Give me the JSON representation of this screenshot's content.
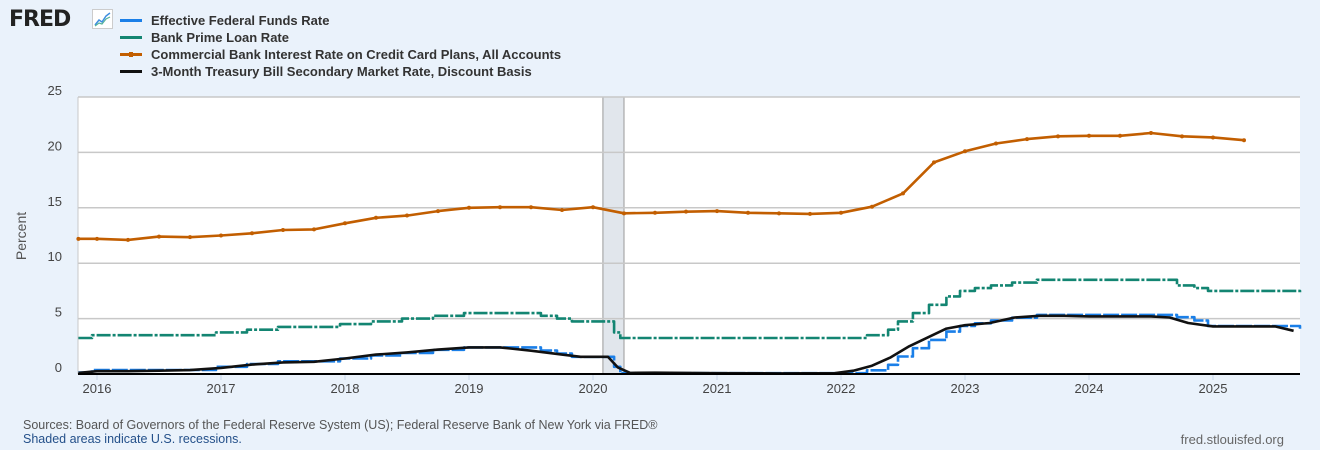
{
  "logo": {
    "text": "FRED",
    "icon": "line-chart-icon"
  },
  "legend": [
    {
      "label": "Effective Federal Funds Rate",
      "color": "#1a7fe8"
    },
    {
      "label": "Bank Prime Loan Rate",
      "color": "#138572"
    },
    {
      "label": "Commercial Bank Interest Rate on Credit Card Plans, All Accounts",
      "color": "#c25e00"
    },
    {
      "label": "3-Month Treasury Bill Secondary Market Rate, Discount Basis",
      "color": "#111111"
    }
  ],
  "footer": {
    "sources": "Sources: Board of Governors of the Federal Reserve System (US); Federal Reserve Bank of New York via FRED®",
    "shading_note": "Shaded areas indicate U.S. recessions.",
    "site": "fred.stlouisfed.org"
  },
  "chart_data": {
    "type": "line",
    "ylabel": "Percent",
    "ylim": [
      0,
      25
    ],
    "yticks": [
      0,
      5,
      10,
      15,
      20,
      25
    ],
    "xlim": [
      2015.85,
      2025.7
    ],
    "xticks": [
      "2016",
      "2017",
      "2018",
      "2019",
      "2020",
      "2021",
      "2022",
      "2023",
      "2024",
      "2025"
    ],
    "grid": true,
    "recessions": [
      [
        2020.08,
        2020.25
      ]
    ],
    "series": [
      {
        "name": "Effective Federal Funds Rate",
        "color": "#1a7fe8",
        "step": true,
        "x": [
          2015.85,
          2015.96,
          2016.96,
          2017.21,
          2017.46,
          2017.96,
          2018.21,
          2018.46,
          2018.71,
          2018.96,
          2019.58,
          2019.71,
          2019.83,
          2020.17,
          2020.22,
          2022.21,
          2022.38,
          2022.46,
          2022.58,
          2022.71,
          2022.85,
          2022.96,
          2023.08,
          2023.21,
          2023.38,
          2023.58,
          2024.71,
          2024.85,
          2024.96,
          2025.71
        ],
        "y": [
          0.13,
          0.36,
          0.65,
          0.9,
          1.15,
          1.4,
          1.68,
          1.9,
          2.18,
          2.4,
          2.12,
          1.85,
          1.55,
          0.65,
          0.07,
          0.33,
          0.83,
          1.58,
          2.33,
          3.08,
          3.83,
          4.33,
          4.58,
          4.83,
          5.08,
          5.33,
          5.13,
          4.83,
          4.33,
          4.08
        ]
      },
      {
        "name": "Bank Prime Loan Rate",
        "color": "#138572",
        "step": true,
        "x": [
          2015.85,
          2015.96,
          2016.96,
          2017.21,
          2017.46,
          2017.96,
          2018.21,
          2018.46,
          2018.71,
          2018.96,
          2019.58,
          2019.71,
          2019.83,
          2020.17,
          2020.22,
          2022.21,
          2022.38,
          2022.46,
          2022.58,
          2022.71,
          2022.85,
          2022.96,
          2023.08,
          2023.21,
          2023.38,
          2023.58,
          2024.71,
          2024.85,
          2024.96,
          2025.71
        ],
        "y": [
          3.25,
          3.5,
          3.75,
          4.0,
          4.25,
          4.5,
          4.75,
          5.0,
          5.25,
          5.5,
          5.25,
          5.0,
          4.75,
          3.75,
          3.25,
          3.5,
          4.0,
          4.75,
          5.5,
          6.25,
          7.0,
          7.5,
          7.75,
          8.0,
          8.25,
          8.5,
          8.0,
          7.75,
          7.5,
          7.25
        ]
      },
      {
        "name": "Commercial Bank Interest Rate on Credit Card Plans, All Accounts",
        "color": "#c25e00",
        "markers": true,
        "x": [
          2015.85,
          2016.0,
          2016.25,
          2016.5,
          2016.75,
          2017.0,
          2017.25,
          2017.5,
          2017.75,
          2018.0,
          2018.25,
          2018.5,
          2018.75,
          2019.0,
          2019.25,
          2019.5,
          2019.75,
          2020.0,
          2020.25,
          2020.5,
          2020.75,
          2021.0,
          2021.25,
          2021.5,
          2021.75,
          2022.0,
          2022.25,
          2022.5,
          2022.75,
          2023.0,
          2023.25,
          2023.5,
          2023.75,
          2024.0,
          2024.25,
          2024.5,
          2024.75,
          2025.0,
          2025.25
        ],
        "y": [
          12.2,
          12.2,
          12.1,
          12.4,
          12.35,
          12.5,
          12.7,
          13.0,
          13.05,
          13.6,
          14.1,
          14.3,
          14.7,
          15.0,
          15.05,
          15.05,
          14.8,
          15.05,
          14.5,
          14.55,
          14.65,
          14.7,
          14.55,
          14.5,
          14.45,
          14.55,
          15.1,
          16.3,
          19.1,
          20.1,
          20.8,
          21.2,
          21.45,
          21.5,
          21.5,
          21.75,
          21.45,
          21.35,
          21.1
        ]
      },
      {
        "name": "3-Month Treasury Bill Secondary Market Rate, Discount Basis",
        "color": "#111111",
        "x": [
          2015.85,
          2016.0,
          2016.25,
          2016.5,
          2016.75,
          2017.0,
          2017.25,
          2017.5,
          2017.75,
          2018.0,
          2018.25,
          2018.5,
          2018.75,
          2019.0,
          2019.25,
          2019.5,
          2019.75,
          2019.9,
          2020.0,
          2020.12,
          2020.2,
          2020.3,
          2020.5,
          2021.0,
          2021.5,
          2021.95,
          2022.1,
          2022.25,
          2022.4,
          2022.55,
          2022.7,
          2022.85,
          2023.0,
          2023.2,
          2023.4,
          2023.6,
          2023.8,
          2024.0,
          2024.25,
          2024.5,
          2024.65,
          2024.8,
          2025.0,
          2025.25,
          2025.5,
          2025.65
        ],
        "y": [
          0.1,
          0.25,
          0.25,
          0.3,
          0.35,
          0.55,
          0.85,
          1.05,
          1.1,
          1.4,
          1.75,
          1.95,
          2.2,
          2.4,
          2.4,
          2.1,
          1.75,
          1.55,
          1.55,
          1.55,
          0.6,
          0.1,
          0.12,
          0.07,
          0.05,
          0.07,
          0.3,
          0.75,
          1.5,
          2.5,
          3.3,
          4.1,
          4.4,
          4.6,
          5.1,
          5.25,
          5.25,
          5.2,
          5.2,
          5.2,
          5.1,
          4.6,
          4.3,
          4.3,
          4.3,
          3.9
        ]
      }
    ]
  }
}
